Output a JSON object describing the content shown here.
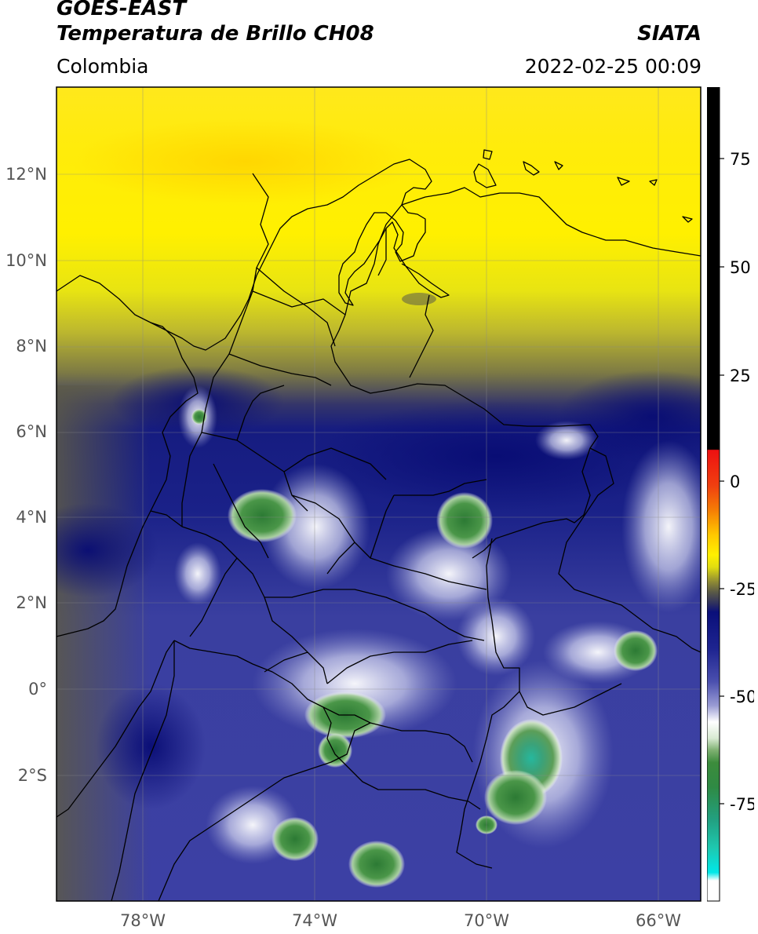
{
  "header": {
    "satellite": "GOES-EAST",
    "product": "Temperatura de Brillo CH08",
    "organization": "SIATA",
    "region": "Colombia",
    "datetime": "2022-02-25 00:09"
  },
  "map": {
    "lat_labels": [
      "12°N",
      "10°N",
      "8°N",
      "6°N",
      "4°N",
      "2°N",
      "0°",
      "2°S"
    ],
    "lon_labels": [
      "78°W",
      "74°W",
      "70°W",
      "66°W"
    ],
    "extent": {
      "lon_min": -79.7,
      "lon_max": -64.7,
      "lat_min": -4.7,
      "lat_max": 14.0
    }
  },
  "colorbar": {
    "labels": [
      "75",
      "50",
      "25",
      "0",
      "-25",
      "-50",
      "-75"
    ],
    "colors": {
      "yellow": "#ffee00",
      "olive": "#6b6b32",
      "navy": "#0a0f7a",
      "periwinkle": "#4a4fae",
      "white": "#ffffff",
      "green": "#3c8c3c",
      "teal": "#22c2aa",
      "cyan": "#00e8e8",
      "red": "#ee1111",
      "black": "#000000"
    }
  }
}
